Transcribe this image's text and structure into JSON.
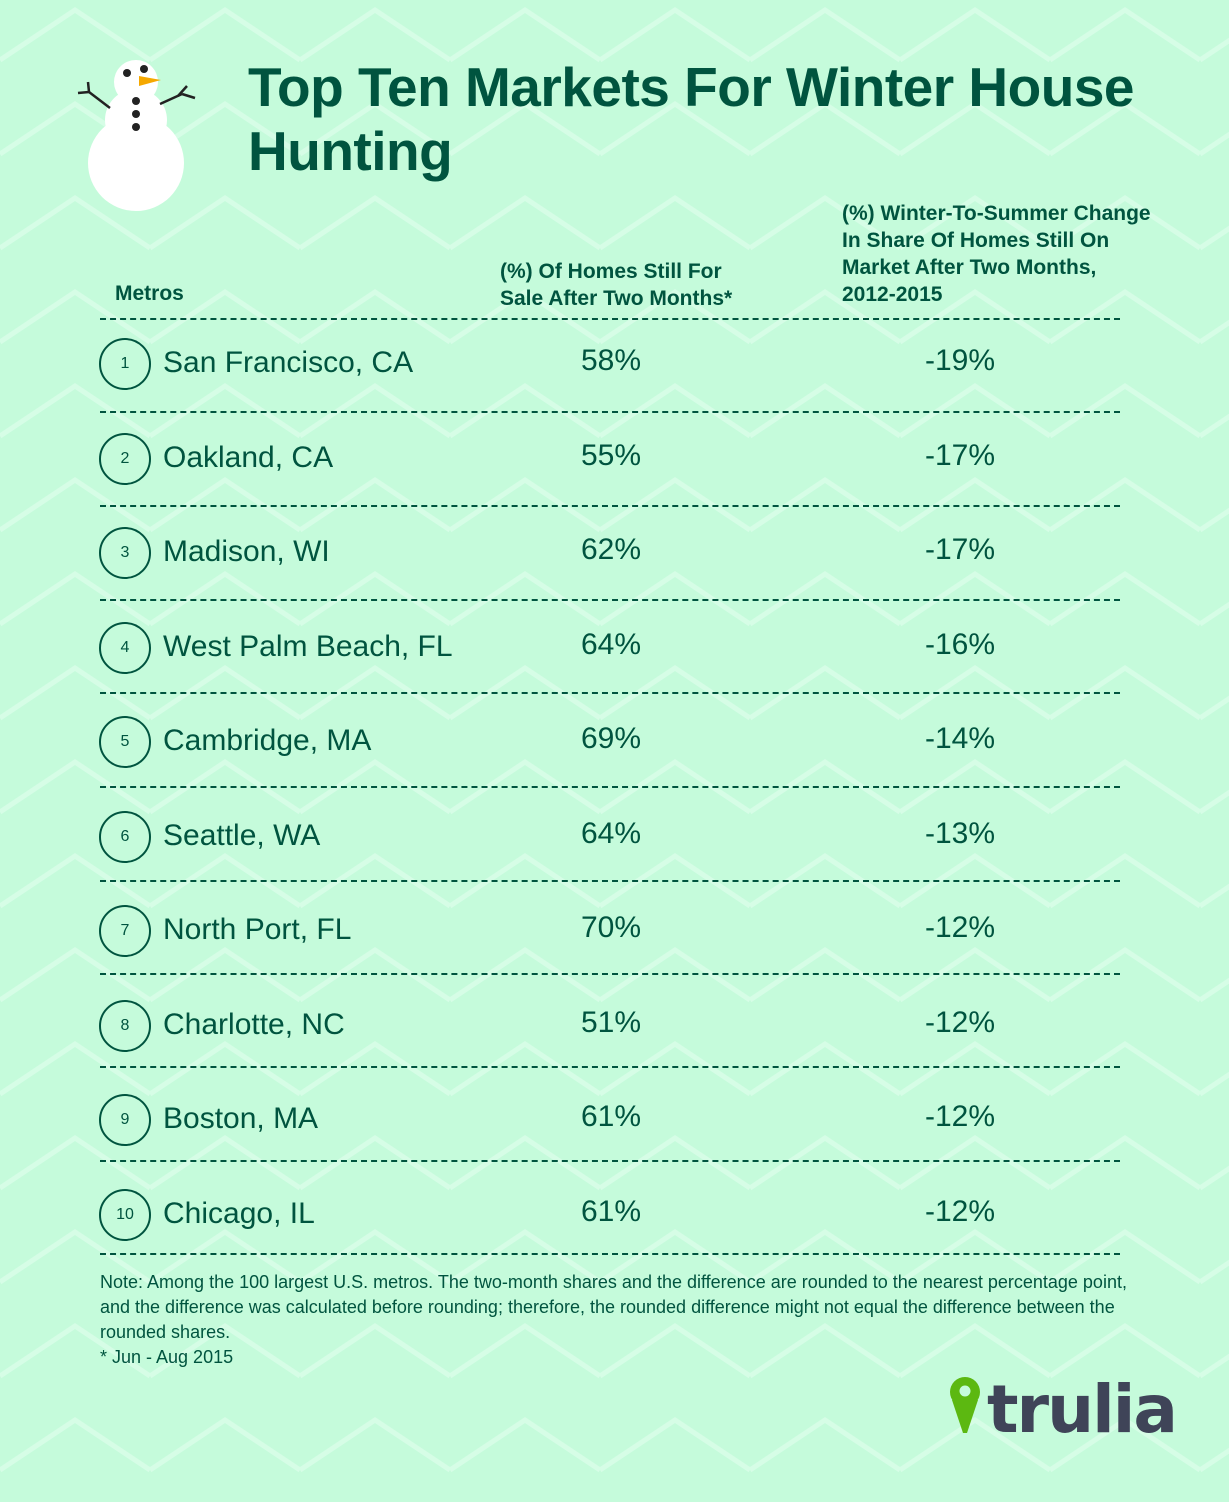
{
  "title": "Top Ten Markets For Winter House Hunting",
  "colors": {
    "background": "#c5fbdb",
    "text": "#00543f",
    "logo_pin": "#5cb811",
    "logo_text": "#3f4458",
    "snowman_nose": "#f5a800"
  },
  "icons": [
    "snowman-illustration",
    "trulia-pin-icon"
  ],
  "logo": "trulia",
  "chart_data": {
    "type": "table",
    "title": "Top Ten Markets For Winter House Hunting",
    "columns": [
      "Metros",
      "(%) Of Homes Still For Sale After Two Months*",
      "(%) Winter-To-Summer Change In Share Of Homes Still On Market After Two Months, 2012-2015"
    ],
    "rows": [
      {
        "rank": "1",
        "metro": "San Francisco, CA",
        "share": "58%",
        "change": "-19%"
      },
      {
        "rank": "2",
        "metro": "Oakland, CA",
        "share": "55%",
        "change": "-17%"
      },
      {
        "rank": "3",
        "metro": "Madison, WI",
        "share": "62%",
        "change": "-17%"
      },
      {
        "rank": "4",
        "metro": "West Palm Beach, FL",
        "share": "64%",
        "change": "-16%"
      },
      {
        "rank": "5",
        "metro": "Cambridge, MA",
        "share": "69%",
        "change": "-14%"
      },
      {
        "rank": "6",
        "metro": "Seattle, WA",
        "share": "64%",
        "change": "-13%"
      },
      {
        "rank": "7",
        "metro": "North Port, FL",
        "share": "70%",
        "change": "-12%"
      },
      {
        "rank": "8",
        "metro": "Charlotte, NC",
        "share": "51%",
        "change": "-12%"
      },
      {
        "rank": "9",
        "metro": "Boston, MA",
        "share": "61%",
        "change": "-12%"
      },
      {
        "rank": "10",
        "metro": "Chicago, IL",
        "share": "61%",
        "change": "-12%"
      }
    ],
    "note": "Note: Among the 100 largest U.S. metros. The two-month shares and the difference are rounded to the nearest percentage point, and the difference was calculated before rounding; therefore, the rounded difference might not equal the difference between the rounded shares.",
    "footnote": "* Jun - Aug 2015"
  }
}
